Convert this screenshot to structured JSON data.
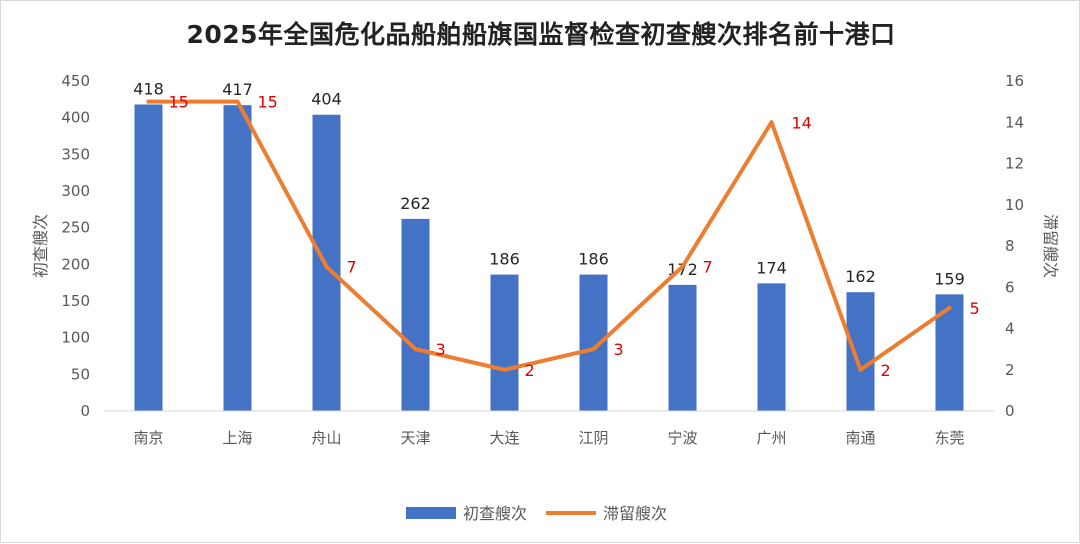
{
  "chart_data": {
    "type": "bar",
    "title": "2025年全国危化品船舶船旗国监督检查初查艘次排名前十港口",
    "categories": [
      "南京",
      "上海",
      "舟山",
      "天津",
      "大连",
      "江阴",
      "宁波",
      "广州",
      "南通",
      "东莞"
    ],
    "series": [
      {
        "name": "初查艘次",
        "type": "bar",
        "axis": "left",
        "color": "#4472C4",
        "values": [
          418,
          417,
          404,
          262,
          186,
          186,
          172,
          174,
          162,
          159
        ]
      },
      {
        "name": "滞留艘次",
        "type": "line",
        "axis": "right",
        "color": "#ED7D31",
        "label_color": "#E00000",
        "values": [
          15,
          15,
          7,
          3,
          2,
          3,
          7,
          14,
          2,
          5
        ]
      }
    ],
    "ylabel": "初查艘次",
    "y2label": "滞留艘次",
    "ylim": [
      0,
      450
    ],
    "yticks": [
      0,
      50,
      100,
      150,
      200,
      250,
      300,
      350,
      400,
      450
    ],
    "y2lim": [
      0,
      16
    ],
    "y2ticks": [
      0,
      2,
      4,
      6,
      8,
      10,
      12,
      14,
      16
    ],
    "grid": false,
    "legend": "bottom"
  }
}
